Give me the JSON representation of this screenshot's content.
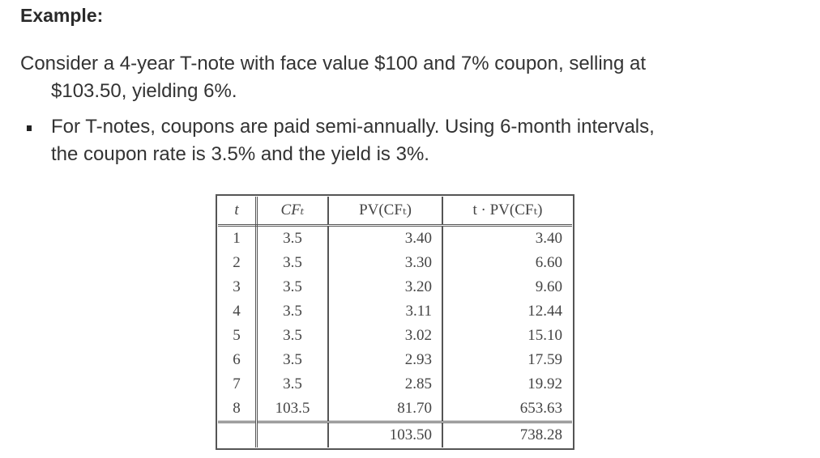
{
  "heading": "Example:",
  "intro_line1": "Consider a 4-year T-note with face value $100 and 7% coupon, selling at",
  "intro_line2": "$103.50, yielding 6%.",
  "bullet_line1": "For T-notes, coupons are paid semi-annually. Using 6-month intervals,",
  "bullet_line2": "the coupon rate is 3.5% and the yield is 3%.",
  "table": {
    "headers": [
      "t",
      "CFₜ",
      "PV(CFₜ)",
      "t · PV(CFₜ)"
    ],
    "rows": [
      [
        "1",
        "3.5",
        "3.40",
        "3.40"
      ],
      [
        "2",
        "3.5",
        "3.30",
        "6.60"
      ],
      [
        "3",
        "3.5",
        "3.20",
        "9.60"
      ],
      [
        "4",
        "3.5",
        "3.11",
        "12.44"
      ],
      [
        "5",
        "3.5",
        "3.02",
        "15.10"
      ],
      [
        "6",
        "3.5",
        "2.93",
        "17.59"
      ],
      [
        "7",
        "3.5",
        "2.85",
        "19.92"
      ],
      [
        "8",
        "103.5",
        "81.70",
        "653.63"
      ]
    ],
    "total": [
      "",
      "",
      "103.50",
      "738.28"
    ]
  }
}
